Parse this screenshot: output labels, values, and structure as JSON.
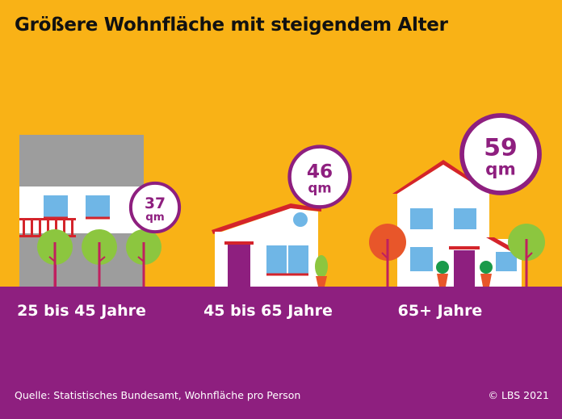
{
  "title": "Größere Wohnfläche mit steigendem Alter",
  "chart_data": {
    "type": "bar",
    "categories": [
      "25 bis 45 Jahre",
      "45 bis 65 Jahre",
      "65+ Jahre"
    ],
    "values": [
      37,
      46,
      59
    ],
    "unit": "qm"
  },
  "footer": {
    "source": "Quelle: Statistisches Bundesamt, Wohnfläche pro Person",
    "copyright": "© LBS 2021"
  },
  "colors": {
    "background": "#f9b216",
    "ground": "#8e1f7f",
    "badge_border": "#8e1f7f",
    "roof_red": "#d4242b",
    "tree_green": "#8cc63f",
    "tree_orange": "#e8562a"
  }
}
